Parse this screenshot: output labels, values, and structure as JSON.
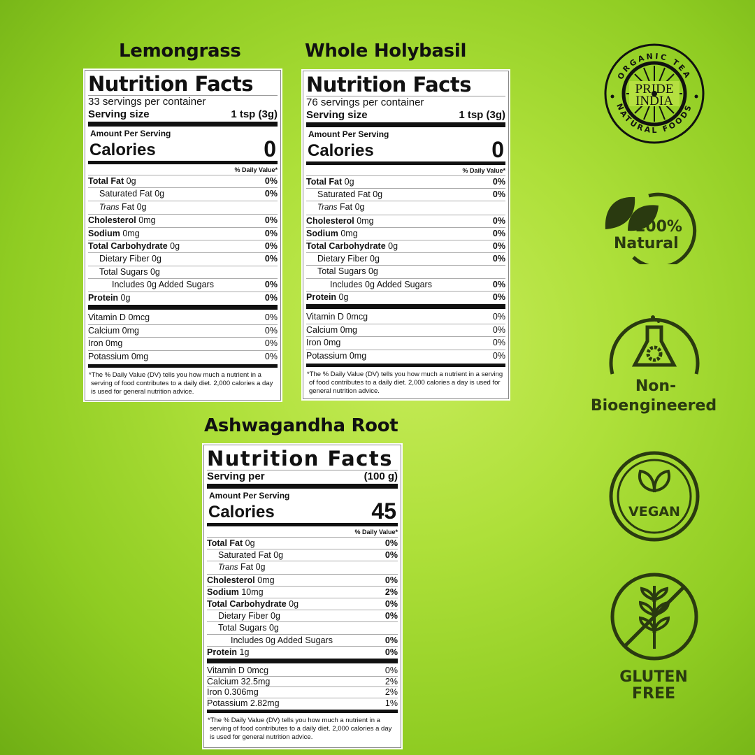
{
  "products": [
    {
      "title": "Lemongrass",
      "label": {
        "heading": "Nutrition Facts",
        "servings": "33 servings per container",
        "serving_key": "Serving size",
        "serving_val": "1 tsp (3g)",
        "amount_per": "Amount Per Serving",
        "calories_key": "Calories",
        "calories_val": "0",
        "dv_header": "% Daily Value*",
        "rows": [
          {
            "label": "Total Fat",
            "amount": "0g",
            "dv": "0%",
            "bold": true,
            "indent": 0
          },
          {
            "label": "Saturated Fat",
            "amount": "0g",
            "dv": "0%",
            "indent": 1
          },
          {
            "italic": "Trans",
            "label": "Fat",
            "amount": "0g",
            "dv": "",
            "indent": 1
          },
          {
            "label": "Cholesterol",
            "amount": "0mg",
            "dv": "0%",
            "bold": true,
            "indent": 0
          },
          {
            "label": "Sodium",
            "amount": "0mg",
            "dv": "0%",
            "bold": true,
            "indent": 0
          },
          {
            "label": "Total Carbohydrate",
            "amount": "0g",
            "dv": "0%",
            "bold": true,
            "indent": 0
          },
          {
            "label": "Dietary Fiber",
            "amount": "0g",
            "dv": "0%",
            "indent": 1
          },
          {
            "label": "Total Sugars",
            "amount": "0g",
            "dv": "",
            "indent": 1
          },
          {
            "label": "Includes 0g Added Sugars",
            "amount": "",
            "dv": "0%",
            "indent": 2
          },
          {
            "label": "Protein",
            "amount": "0g",
            "dv": "0%",
            "bold": true,
            "indent": 0
          }
        ],
        "vitamins": [
          {
            "label": "Vitamin D",
            "amount": "0mcg",
            "dv": "0%"
          },
          {
            "label": "Calcium",
            "amount": "0mg",
            "dv": "0%"
          },
          {
            "label": "Iron",
            "amount": "0mg",
            "dv": "0%"
          },
          {
            "label": "Potassium",
            "amount": "0mg",
            "dv": "0%"
          }
        ],
        "footnote": "*The % Daily Value (DV) tells you how much a nutrient in a serving of food contributes to a daily diet. 2,000 calories a day is used for general nutrition advice."
      }
    },
    {
      "title": "Whole Holybasil",
      "label": {
        "heading": "Nutrition Facts",
        "servings": "76 servings per container",
        "serving_key": "Serving size",
        "serving_val": "1 tsp (3g)",
        "amount_per": "Amount Per Serving",
        "calories_key": "Calories",
        "calories_val": "0",
        "dv_header": "% Daily Value*",
        "rows": [
          {
            "label": "Total Fat",
            "amount": "0g",
            "dv": "0%",
            "bold": true,
            "indent": 0
          },
          {
            "label": "Saturated Fat",
            "amount": "0g",
            "dv": "0%",
            "indent": 1
          },
          {
            "italic": "Trans",
            "label": "Fat",
            "amount": "0g",
            "dv": "",
            "indent": 1
          },
          {
            "label": "Cholesterol",
            "amount": "0mg",
            "dv": "0%",
            "bold": true,
            "indent": 0
          },
          {
            "label": "Sodium",
            "amount": "0mg",
            "dv": "0%",
            "bold": true,
            "indent": 0
          },
          {
            "label": "Total Carbohydrate",
            "amount": "0g",
            "dv": "0%",
            "bold": true,
            "indent": 0
          },
          {
            "label": "Dietary Fiber",
            "amount": "0g",
            "dv": "0%",
            "indent": 1
          },
          {
            "label": "Total Sugars",
            "amount": "0g",
            "dv": "",
            "indent": 1
          },
          {
            "label": "Includes 0g Added Sugars",
            "amount": "",
            "dv": "0%",
            "indent": 2
          },
          {
            "label": "Protein",
            "amount": "0g",
            "dv": "0%",
            "bold": true,
            "indent": 0
          }
        ],
        "vitamins": [
          {
            "label": "Vitamin D",
            "amount": "0mcg",
            "dv": "0%"
          },
          {
            "label": "Calcium",
            "amount": "0mg",
            "dv": "0%"
          },
          {
            "label": "Iron",
            "amount": "0mg",
            "dv": "0%"
          },
          {
            "label": "Potassium",
            "amount": "0mg",
            "dv": "0%"
          }
        ],
        "footnote": "*The % Daily Value (DV) tells you how much a nutrient in a serving of food contributes to a daily diet. 2,000 calories a day is used for general nutrition advice."
      }
    },
    {
      "title": "Ashwagandha Root",
      "label": {
        "heading": "Nutrition Facts",
        "servings": "",
        "serving_key": "Serving per",
        "serving_val": "(100 g)",
        "amount_per": "Amount Per Serving",
        "calories_key": "Calories",
        "calories_val": "45",
        "dv_header": "% Daily Value*",
        "rows": [
          {
            "label": "Total Fat",
            "amount": "0g",
            "dv": "0%",
            "bold": true,
            "indent": 0
          },
          {
            "label": "Saturated Fat",
            "amount": "0g",
            "dv": "0%",
            "indent": 1
          },
          {
            "italic": "Trans",
            "label": "Fat",
            "amount": "0g",
            "dv": "",
            "indent": 1
          },
          {
            "label": "Cholesterol",
            "amount": "0mg",
            "dv": "0%",
            "bold": true,
            "indent": 0
          },
          {
            "label": "Sodium",
            "amount": "10mg",
            "dv": "2%",
            "bold": true,
            "indent": 0
          },
          {
            "label": "Total Carbohydrate",
            "amount": "0g",
            "dv": "0%",
            "bold": true,
            "indent": 0
          },
          {
            "label": "Dietary Fiber",
            "amount": "0g",
            "dv": "0%",
            "indent": 1
          },
          {
            "label": "Total Sugars",
            "amount": "0g",
            "dv": "",
            "indent": 1
          },
          {
            "label": "Includes 0g Added Sugars",
            "amount": "",
            "dv": "0%",
            "indent": 2
          },
          {
            "label": "Protein",
            "amount": "1g",
            "dv": "0%",
            "bold": true,
            "indent": 0
          }
        ],
        "vitamins": [
          {
            "label": "Vitamin D",
            "amount": "0mcg",
            "dv": "0%"
          },
          {
            "label": "Calcium",
            "amount": "32.5mg",
            "dv": "2%"
          },
          {
            "label": "Iron",
            "amount": "0.306mg",
            "dv": "2%"
          },
          {
            "label": "Potassium",
            "amount": "2.82mg",
            "dv": "1%"
          }
        ],
        "footnote": "*The % Daily Value (DV) tells you how much a nutrient in a serving of food contributes to a daily diet. 2,000 calories a day is used for general nutrition advice."
      }
    }
  ],
  "logo": {
    "top_text": "ORGANIC TEA",
    "bottom_text": "NATURAL FOODS",
    "center_line1": "PRIDE",
    "center_line2": "INDIA"
  },
  "badges": [
    {
      "icon": "leaf-icon",
      "line1": "100%",
      "line2": "Natural"
    },
    {
      "icon": "flask-gear-icon",
      "line1": "Non-",
      "line2": "Bioengineered"
    },
    {
      "icon": "vegan-leaf-icon",
      "line1": "VEGAN",
      "line2": ""
    },
    {
      "icon": "no-wheat-icon",
      "line1": "GLUTEN",
      "line2": "FREE"
    }
  ],
  "colors": {
    "background": "#a6dc34",
    "badge_ink": "#2a3a10",
    "label_ink": "#111111"
  }
}
